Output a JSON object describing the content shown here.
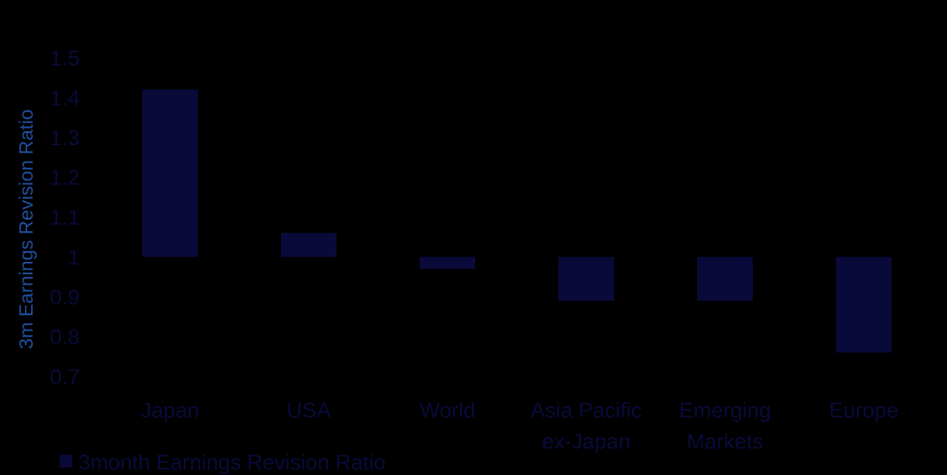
{
  "chart_data": {
    "type": "bar",
    "title": "",
    "xlabel": "",
    "ylabel": "3m Earnings Revision Ratio",
    "baseline": 1,
    "ylim": [
      0.7,
      1.5
    ],
    "yticks": [
      "0.7",
      "0.8",
      "0.9",
      "1",
      "1.1",
      "1.2",
      "1.3",
      "1.4",
      "1.5"
    ],
    "categories": [
      [
        "Japan"
      ],
      [
        "USA"
      ],
      [
        "World"
      ],
      [
        "Asia Pacific",
        "ex-Japan"
      ],
      [
        "Emerging",
        "Markets"
      ],
      [
        "Europe"
      ]
    ],
    "series": [
      {
        "name": "3month Earnings Revision Ratio",
        "values": [
          1.42,
          1.06,
          0.97,
          0.89,
          0.89,
          0.76
        ],
        "color": "#0a0a3a"
      }
    ],
    "grid": false,
    "legend_position": "bottom-left"
  },
  "colors": {
    "background": "#000000",
    "bar": "#0a0a3a",
    "text": "#0a0a3a",
    "axis_title": "#1f4e9c"
  }
}
